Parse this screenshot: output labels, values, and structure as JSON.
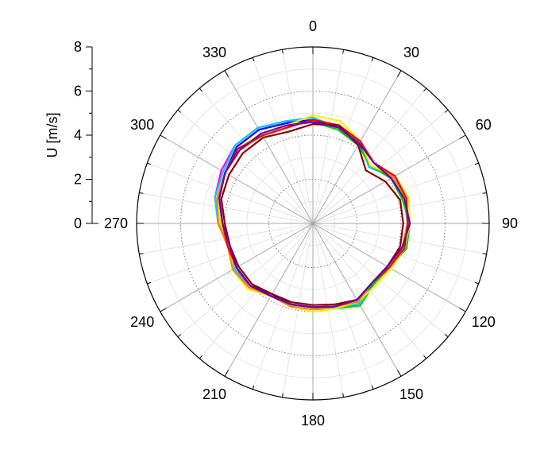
{
  "chart_data": {
    "type": "polar-line",
    "radial_axis": {
      "label": "U [m/s]",
      "range": [
        0,
        8
      ],
      "ticks": [
        "0",
        "2",
        "4",
        "6",
        "8"
      ],
      "tick_values": [
        0,
        2,
        4,
        6,
        8
      ]
    },
    "angular_axis": {
      "unit": "degrees",
      "zero_location": "top",
      "direction": "clockwise",
      "ticks": [
        "0",
        "30",
        "60",
        "90",
        "120",
        "150",
        "180",
        "210",
        "240",
        "270",
        "300",
        "330"
      ],
      "tick_values": [
        0,
        30,
        60,
        90,
        120,
        150,
        180,
        210,
        240,
        270,
        300,
        330
      ]
    },
    "grid": true,
    "legend": "none",
    "theta": [
      0,
      15,
      30,
      45,
      60,
      75,
      90,
      105,
      120,
      135,
      150,
      165,
      180,
      195,
      210,
      225,
      240,
      255,
      270,
      285,
      300,
      315,
      330,
      345
    ],
    "series": [
      {
        "color": "#ff00ff",
        "r": [
          4.6,
          4.5,
          4.1,
          3.7,
          4.1,
          4.3,
          4.3,
          4.2,
          4.0,
          3.9,
          4.1,
          4.0,
          3.8,
          3.8,
          3.8,
          4.1,
          4.0,
          3.9,
          4.3,
          4.6,
          4.8,
          5.0,
          5.0,
          4.8
        ]
      },
      {
        "color": "#0000ff",
        "r": [
          4.7,
          4.5,
          4.2,
          3.7,
          4.1,
          4.3,
          4.4,
          4.2,
          3.9,
          3.9,
          4.1,
          3.9,
          3.8,
          3.8,
          3.7,
          4.0,
          4.0,
          3.9,
          4.2,
          4.5,
          4.6,
          4.9,
          4.9,
          4.7
        ]
      },
      {
        "color": "#00ccff",
        "r": [
          4.8,
          4.5,
          4.3,
          3.6,
          4.2,
          4.3,
          4.3,
          4.2,
          4.0,
          3.8,
          4.2,
          4.0,
          3.9,
          3.9,
          3.8,
          4.1,
          4.1,
          4.0,
          4.3,
          4.6,
          4.7,
          5.0,
          5.0,
          4.8
        ]
      },
      {
        "color": "#00cc00",
        "r": [
          4.6,
          4.4,
          4.1,
          3.7,
          4.1,
          4.2,
          4.4,
          4.4,
          4.0,
          3.9,
          4.3,
          4.0,
          3.8,
          3.8,
          3.8,
          4.0,
          4.0,
          4.0,
          4.1,
          4.4,
          4.6,
          4.7,
          4.7,
          4.6
        ]
      },
      {
        "color": "#ffee00",
        "r": [
          4.9,
          4.8,
          4.3,
          3.7,
          4.3,
          4.5,
          4.4,
          4.3,
          4.1,
          4.0,
          4.1,
          4.0,
          4.0,
          3.9,
          3.8,
          4.2,
          4.2,
          3.9,
          4.2,
          4.5,
          4.6,
          4.8,
          4.7,
          4.6
        ]
      },
      {
        "color": "#ff8800",
        "r": [
          4.7,
          4.6,
          4.3,
          3.9,
          4.2,
          4.4,
          4.3,
          4.2,
          4.0,
          3.8,
          4.1,
          3.9,
          3.9,
          3.9,
          3.8,
          4.1,
          4.2,
          4.0,
          4.3,
          4.5,
          4.6,
          4.7,
          4.6,
          4.5
        ]
      },
      {
        "color": "#ee0000",
        "r": [
          4.7,
          4.6,
          4.3,
          3.9,
          4.3,
          4.4,
          4.3,
          4.3,
          4.0,
          3.8,
          4.0,
          3.9,
          3.8,
          3.8,
          3.8,
          4.0,
          4.0,
          4.0,
          4.1,
          4.4,
          4.6,
          4.8,
          4.6,
          4.5
        ]
      },
      {
        "color": "#8b0000",
        "r": [
          4.5,
          4.6,
          4.1,
          3.4,
          3.8,
          4.1,
          4.1,
          4.1,
          3.9,
          3.8,
          4.0,
          3.8,
          3.7,
          3.7,
          3.7,
          3.9,
          3.9,
          3.9,
          4.0,
          4.3,
          4.4,
          4.5,
          4.5,
          4.3
        ]
      },
      {
        "color": "#6a00a8",
        "r": [
          4.6,
          4.5,
          4.2,
          3.9,
          4.1,
          4.3,
          4.4,
          4.2,
          3.9,
          3.8,
          4.0,
          3.9,
          3.8,
          3.8,
          3.8,
          4.0,
          4.0,
          3.9,
          4.1,
          4.4,
          4.6,
          4.7,
          4.7,
          4.6
        ]
      }
    ]
  }
}
